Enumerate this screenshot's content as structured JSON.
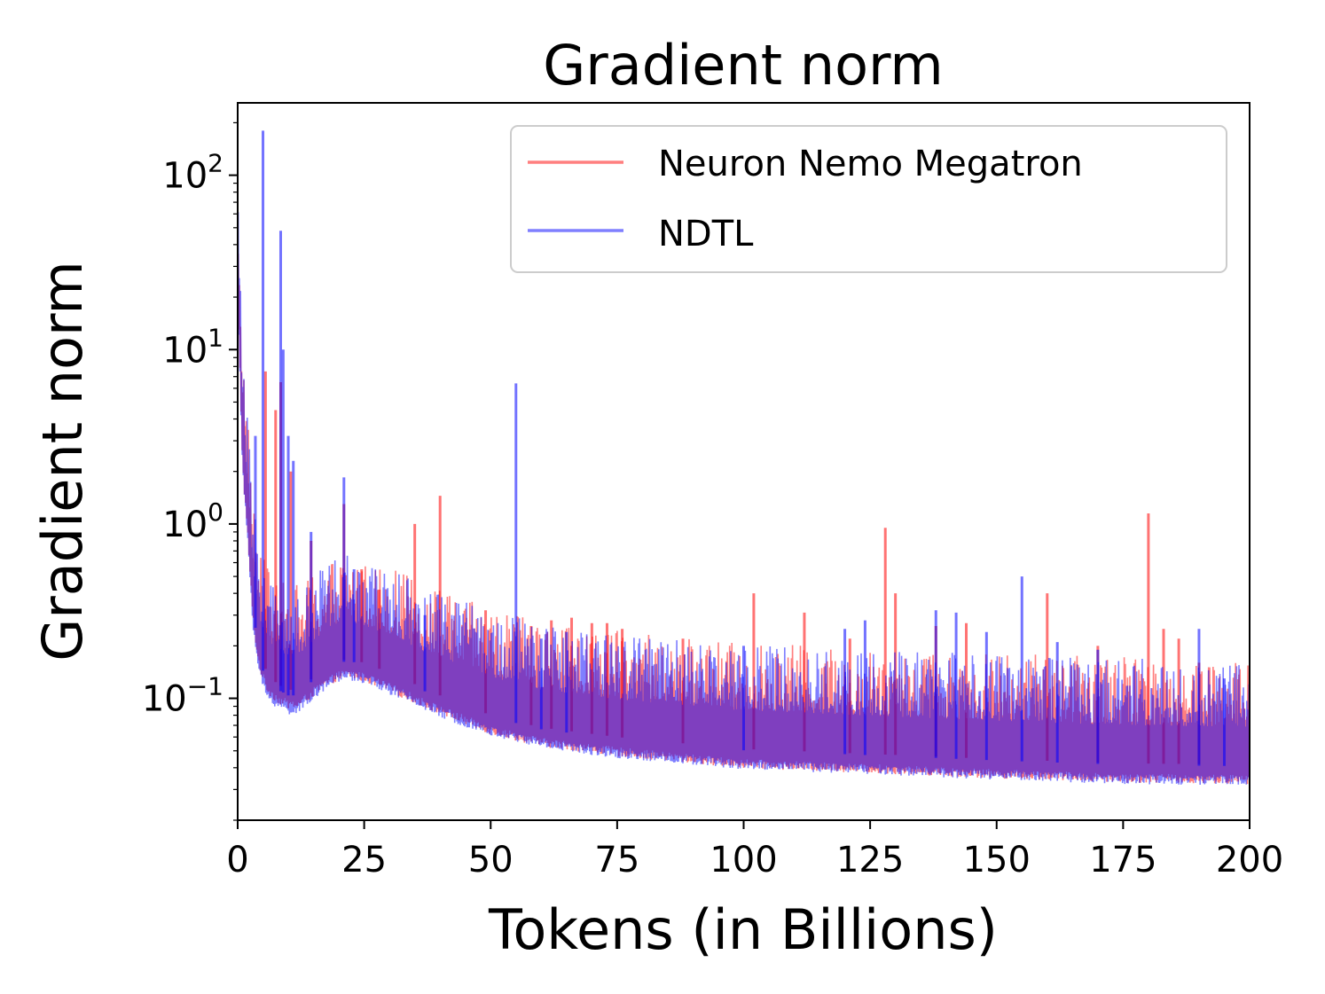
{
  "chart_data": {
    "type": "line",
    "title": "Gradient norm",
    "xlabel": "Tokens (in Billions)",
    "ylabel": "Gradient norm",
    "xlim": [
      0,
      200
    ],
    "ylim": [
      0.02,
      260
    ],
    "yscale": "log",
    "grid": false,
    "legend_position": "top-right",
    "x_ticks": [
      0,
      25,
      50,
      75,
      100,
      125,
      150,
      175,
      200
    ],
    "x_tick_labels": [
      "0",
      "25",
      "50",
      "75",
      "100",
      "125",
      "150",
      "175",
      "200"
    ],
    "y_ticks": [
      {
        "value": 100,
        "base": "10",
        "exp": "2"
      },
      {
        "value": 10,
        "base": "10",
        "exp": "1"
      },
      {
        "value": 1,
        "base": "10",
        "exp": "0"
      },
      {
        "value": 0.1,
        "base": "10",
        "exp": "−1"
      }
    ],
    "series": [
      {
        "name": "Neuron Nemo Megatron",
        "color": "#ff0000",
        "opacity": 0.5,
        "baseline": [
          [
            0,
            32
          ],
          [
            1,
            3.2
          ],
          [
            2,
            1.3
          ],
          [
            3,
            0.45
          ],
          [
            4,
            0.26
          ],
          [
            5,
            0.2
          ],
          [
            6,
            0.17
          ],
          [
            8,
            0.15
          ],
          [
            10,
            0.14
          ],
          [
            12,
            0.14
          ],
          [
            15,
            0.165
          ],
          [
            18,
            0.19
          ],
          [
            20,
            0.205
          ],
          [
            22,
            0.21
          ],
          [
            25,
            0.2
          ],
          [
            30,
            0.175
          ],
          [
            40,
            0.13
          ],
          [
            50,
            0.1
          ],
          [
            60,
            0.085
          ],
          [
            75,
            0.075
          ],
          [
            100,
            0.064
          ],
          [
            125,
            0.06
          ],
          [
            150,
            0.056
          ],
          [
            175,
            0.053
          ],
          [
            200,
            0.052
          ]
        ],
        "spikes": [
          [
            5.5,
            7.5
          ],
          [
            7.5,
            4.5
          ],
          [
            8.5,
            6.5
          ],
          [
            10.5,
            2.0
          ],
          [
            14.5,
            0.8
          ],
          [
            21,
            1.3
          ],
          [
            24.5,
            0.55
          ],
          [
            28,
            0.42
          ],
          [
            35,
            1.0
          ],
          [
            40,
            1.45
          ],
          [
            49,
            0.32
          ],
          [
            58,
            0.26
          ],
          [
            62,
            0.28
          ],
          [
            66,
            0.29
          ],
          [
            70,
            0.27
          ],
          [
            73,
            0.27
          ],
          [
            76,
            0.25
          ],
          [
            88,
            0.22
          ],
          [
            102,
            0.4
          ],
          [
            112,
            0.31
          ],
          [
            121,
            0.22
          ],
          [
            128,
            0.95
          ],
          [
            130,
            0.4
          ],
          [
            138,
            0.26
          ],
          [
            144,
            0.27
          ],
          [
            160,
            0.4
          ],
          [
            170,
            0.2
          ],
          [
            180,
            1.15
          ],
          [
            183,
            0.25
          ],
          [
            186,
            0.22
          ],
          [
            190,
            0.16
          ]
        ]
      },
      {
        "name": "NDTL",
        "color": "#0000ff",
        "opacity": 0.5,
        "baseline": [
          [
            0,
            30
          ],
          [
            1,
            3.0
          ],
          [
            2,
            1.25
          ],
          [
            3,
            0.42
          ],
          [
            4,
            0.24
          ],
          [
            5,
            0.18
          ],
          [
            6,
            0.155
          ],
          [
            8,
            0.14
          ],
          [
            10,
            0.13
          ],
          [
            12,
            0.13
          ],
          [
            15,
            0.16
          ],
          [
            18,
            0.185
          ],
          [
            20,
            0.2
          ],
          [
            22,
            0.205
          ],
          [
            25,
            0.195
          ],
          [
            30,
            0.17
          ],
          [
            40,
            0.125
          ],
          [
            50,
            0.098
          ],
          [
            60,
            0.083
          ],
          [
            75,
            0.073
          ],
          [
            100,
            0.063
          ],
          [
            125,
            0.059
          ],
          [
            150,
            0.055
          ],
          [
            175,
            0.052
          ],
          [
            200,
            0.051
          ]
        ],
        "spikes": [
          [
            3.5,
            3.2
          ],
          [
            5,
            180
          ],
          [
            8.5,
            48
          ],
          [
            9,
            10
          ],
          [
            10,
            3.2
          ],
          [
            11,
            2.3
          ],
          [
            14.5,
            0.9
          ],
          [
            21,
            1.85
          ],
          [
            23,
            0.55
          ],
          [
            37,
            0.3
          ],
          [
            55,
            6.4
          ],
          [
            60,
            0.22
          ],
          [
            65,
            0.24
          ],
          [
            100,
            0.2
          ],
          [
            120,
            0.25
          ],
          [
            124,
            0.28
          ],
          [
            138,
            0.32
          ],
          [
            142,
            0.31
          ],
          [
            148,
            0.24
          ],
          [
            155,
            0.5
          ],
          [
            162,
            0.21
          ],
          [
            170,
            0.19
          ],
          [
            190,
            0.25
          ],
          [
            195,
            0.13
          ]
        ]
      }
    ]
  }
}
